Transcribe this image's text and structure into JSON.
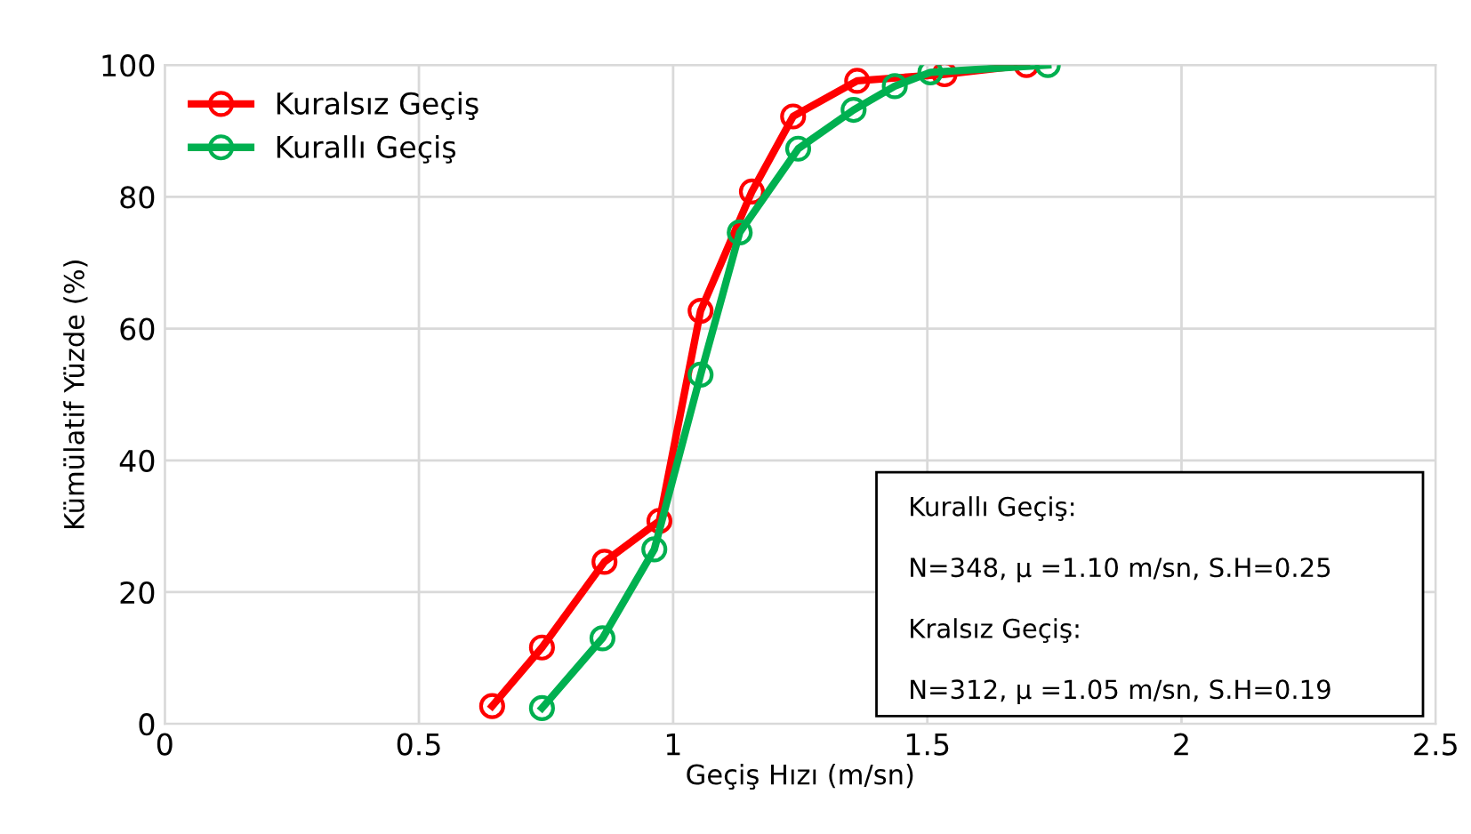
{
  "chart_data": {
    "type": "line",
    "xlabel": "Geçiş Hızı (m/sn)",
    "ylabel": "Kümülatif Yüzde (%)",
    "xlim": [
      0,
      2.5
    ],
    "ylim": [
      0,
      100
    ],
    "xticks": [
      0,
      0.5,
      1,
      1.5,
      2,
      2.5
    ],
    "yticks": [
      0,
      20,
      40,
      60,
      80,
      100
    ],
    "grid": true,
    "legend": "top left",
    "marker": "circle",
    "line_style": "solid",
    "series": [
      {
        "name": "Kuralsız Geçiş",
        "color": "#ff0000",
        "x": [
          0.644,
          0.742,
          0.865,
          0.973,
          1.054,
          1.155,
          1.236,
          1.362,
          1.534,
          1.695
        ],
        "values": [
          2.7,
          11.6,
          24.6,
          30.8,
          62.7,
          80.8,
          92.2,
          97.6,
          98.6,
          100
        ]
      },
      {
        "name": "Kurallı Geçiş",
        "color": "#00b050",
        "x": [
          0.742,
          0.861,
          0.963,
          1.054,
          1.131,
          1.246,
          1.355,
          1.436,
          1.506,
          1.737
        ],
        "values": [
          2.4,
          13,
          26.5,
          53,
          74.6,
          87.3,
          93.2,
          96.8,
          98.9,
          100
        ]
      }
    ],
    "annotations": [
      "Kurallı Geçiş:",
      "N=348, μ =1.10 m/sn, S.H=0.25",
      "Kralsız Geçiş:",
      "N=312, μ =1.05 m/sn, S.H=0.19"
    ]
  }
}
